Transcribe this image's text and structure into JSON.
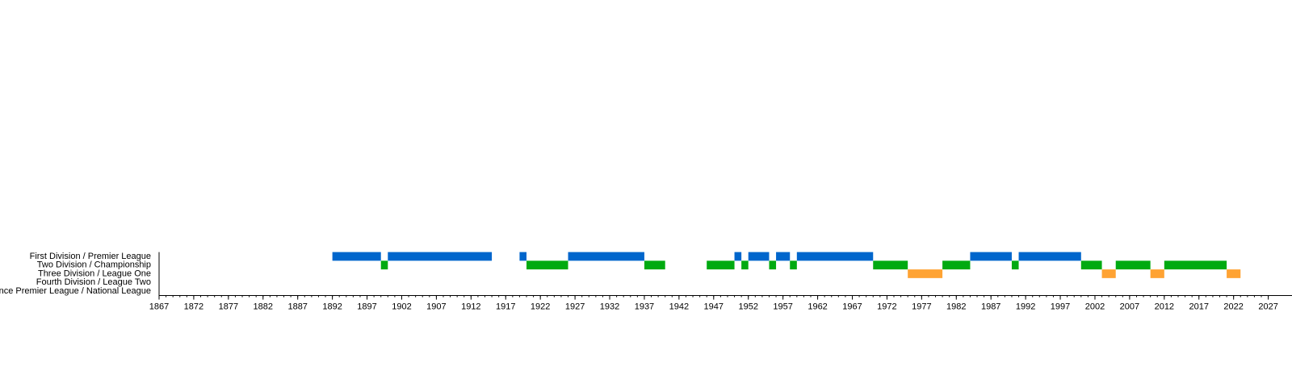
{
  "chart_data": {
    "type": "timeline",
    "series": [
      {
        "name": "First Division / Premier League",
        "color": "#0066cc",
        "ranges": [
          [
            1892,
            1899
          ],
          [
            1900,
            1915
          ],
          [
            1919,
            1920
          ],
          [
            1926,
            1937
          ],
          [
            1950,
            1951
          ],
          [
            1952,
            1955
          ],
          [
            1956,
            1958
          ],
          [
            1959,
            1970
          ],
          [
            1984,
            1990
          ],
          [
            1991,
            2000
          ]
        ]
      },
      {
        "name": "Two Division / Championship",
        "color": "#00aa11",
        "ranges": [
          [
            1899,
            1900
          ],
          [
            1920,
            1926
          ],
          [
            1937,
            1940
          ],
          [
            1946,
            1950
          ],
          [
            1951,
            1952
          ],
          [
            1955,
            1956
          ],
          [
            1958,
            1959
          ],
          [
            1970,
            1975
          ],
          [
            1980,
            1984
          ],
          [
            1990,
            1991
          ],
          [
            2000,
            2003
          ],
          [
            2005,
            2010
          ],
          [
            2012,
            2021
          ]
        ]
      },
      {
        "name": "Three Division / League One",
        "color": "#ffa333",
        "ranges": [
          [
            1975,
            1980
          ],
          [
            2003,
            2005
          ],
          [
            2010,
            2012
          ],
          [
            2021,
            2023
          ]
        ]
      },
      {
        "name": "Fourth Division / League Two",
        "ranges": []
      },
      {
        "name": "Aliance Premier League / National League",
        "ranges": []
      }
    ],
    "xlim": [
      1867,
      2027
    ],
    "xticks": [
      1867,
      1872,
      1877,
      1882,
      1887,
      1892,
      1897,
      1902,
      1907,
      1912,
      1917,
      1922,
      1927,
      1932,
      1937,
      1942,
      1947,
      1952,
      1957,
      1962,
      1967,
      1972,
      1977,
      1982,
      1987,
      1992,
      1997,
      2002,
      2007,
      2012,
      2017,
      2022,
      2027
    ]
  }
}
